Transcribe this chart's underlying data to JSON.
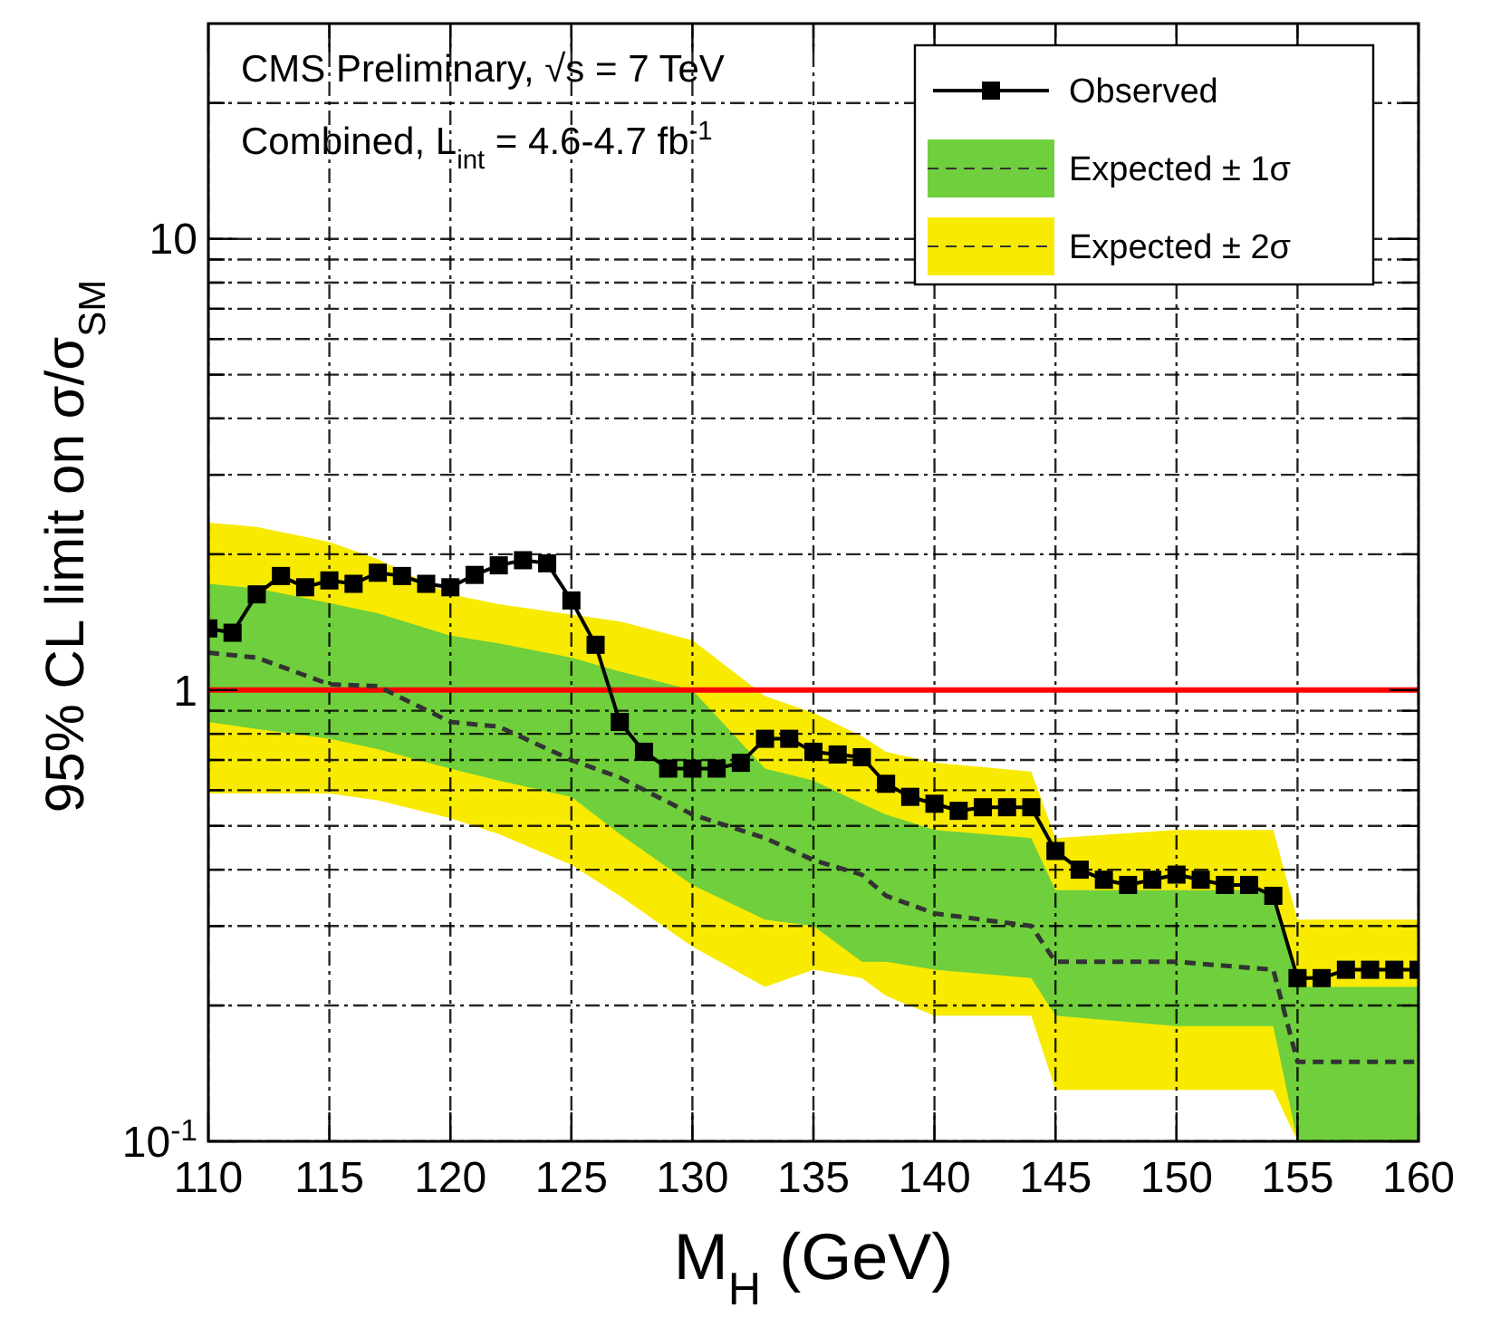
{
  "chart_data": {
    "type": "line",
    "xlabel": "M$_{H}$ (GeV)",
    "ylabel": "95% CL limit on σ/σ$_{SM}$",
    "annotations": [
      "CMS Preliminary, √s = 7 TeV",
      "Combined, L$_{int}$ = 4.6-4.7 fb$^{-1}$"
    ],
    "log": true,
    "xlim": [
      110,
      160
    ],
    "xticks": [
      110,
      115,
      120,
      125,
      130,
      135,
      140,
      145,
      150,
      155,
      160
    ],
    "ylim": [
      0.1,
      30
    ],
    "yticks": [
      {
        "value": 0.1,
        "label": "10$^{-1}$"
      },
      {
        "value": 0.2,
        "label": null
      },
      {
        "value": 0.3,
        "label": null
      },
      {
        "value": 0.4,
        "label": null
      },
      {
        "value": 0.5,
        "label": null
      },
      {
        "value": 0.6,
        "label": null
      },
      {
        "value": 0.7,
        "label": null
      },
      {
        "value": 0.8,
        "label": null
      },
      {
        "value": 0.9,
        "label": null
      },
      1,
      {
        "value": 2,
        "label": null
      },
      {
        "value": 3,
        "label": null
      },
      {
        "value": 4,
        "label": null
      },
      {
        "value": 5,
        "label": null
      },
      {
        "value": 6,
        "label": null
      },
      {
        "value": 7,
        "label": null
      },
      {
        "value": 8,
        "label": null
      },
      {
        "value": 9,
        "label": null
      },
      10,
      {
        "value": 20,
        "label": null
      }
    ],
    "grid": true,
    "legend": "top right",
    "ref_lines": [
      {
        "axis": "y",
        "value": 1,
        "color": "#ff0000"
      }
    ],
    "series": [
      {
        "name": "Observed",
        "color": "#000000",
        "marker": "square",
        "line_style": "solid",
        "x": [
          110,
          111,
          112,
          113,
          114,
          115,
          116,
          117,
          118,
          119,
          120,
          121,
          122,
          123,
          124,
          125,
          126,
          127,
          128,
          129,
          130,
          131,
          132,
          133,
          134,
          135,
          136,
          137,
          138,
          139,
          140,
          141,
          142,
          143,
          144,
          145,
          146,
          147,
          148,
          149,
          150,
          151,
          152,
          153,
          154,
          155,
          156,
          157,
          158,
          159,
          160
        ],
        "values": [
          1.37,
          1.34,
          1.63,
          1.79,
          1.69,
          1.75,
          1.72,
          1.82,
          1.79,
          1.72,
          1.69,
          1.8,
          1.89,
          1.94,
          1.91,
          1.58,
          1.26,
          0.85,
          0.73,
          0.67,
          0.67,
          0.67,
          0.69,
          0.78,
          0.78,
          0.73,
          0.72,
          0.71,
          0.62,
          0.58,
          0.56,
          0.54,
          0.55,
          0.55,
          0.55,
          0.44,
          0.4,
          0.38,
          0.37,
          0.38,
          0.39,
          0.38,
          0.37,
          0.37,
          0.35,
          0.23,
          0.23,
          0.24,
          0.24,
          0.24,
          0.24
        ]
      },
      {
        "name": "Expected ± 1σ",
        "color": "#6fcf3c",
        "x": [
          110,
          112,
          115,
          117,
          120,
          122,
          125,
          127,
          130,
          133,
          135,
          137,
          138,
          140,
          144,
          145,
          150,
          154,
          155,
          160
        ],
        "values": [
          null,
          null,
          null,
          null,
          null,
          null,
          null,
          null,
          null,
          null,
          null,
          null,
          null,
          null,
          null,
          null,
          null,
          null,
          null,
          null
        ],
        "upper": [
          1.72,
          1.68,
          1.56,
          1.48,
          1.32,
          1.27,
          1.18,
          1.1,
          1.0,
          0.67,
          0.63,
          0.56,
          0.53,
          0.49,
          0.47,
          0.36,
          0.36,
          0.36,
          0.22,
          0.22
        ],
        "lower": [
          0.85,
          0.82,
          0.78,
          0.74,
          0.67,
          0.63,
          0.58,
          0.48,
          0.37,
          0.31,
          0.3,
          0.25,
          0.25,
          0.24,
          0.23,
          0.19,
          0.18,
          0.18,
          0.1,
          0.1
        ]
      },
      {
        "name": "Expected ± 2σ",
        "color": "#f8ea00",
        "x": [
          110,
          112,
          115,
          117,
          120,
          122,
          125,
          127,
          130,
          133,
          135,
          137,
          138,
          140,
          144,
          145,
          150,
          154,
          155,
          160
        ],
        "values": [
          null,
          null,
          null,
          null,
          null,
          null,
          null,
          null,
          null,
          null,
          null,
          null,
          null,
          null,
          null,
          null,
          null,
          null,
          null,
          null
        ],
        "upper": [
          2.35,
          2.3,
          2.13,
          1.95,
          1.63,
          1.55,
          1.47,
          1.42,
          1.29,
          0.97,
          0.89,
          0.79,
          0.73,
          0.69,
          0.66,
          0.47,
          0.49,
          0.49,
          0.31,
          0.31
        ],
        "lower": [
          0.59,
          0.59,
          0.59,
          0.57,
          0.52,
          0.48,
          0.41,
          0.35,
          0.27,
          0.22,
          0.24,
          0.23,
          0.21,
          0.19,
          0.19,
          0.13,
          0.13,
          0.13,
          0.1,
          0.1
        ]
      },
      {
        "color": "#333333",
        "marker": "none",
        "line_style": "dashed",
        "x": [
          110,
          112,
          115,
          117,
          120,
          122,
          125,
          127,
          130,
          133,
          135,
          137,
          138,
          140,
          144,
          145,
          150,
          154,
          155,
          160
        ],
        "values": [
          1.21,
          1.18,
          1.03,
          1.02,
          0.85,
          0.83,
          0.7,
          0.64,
          0.53,
          0.47,
          0.42,
          0.39,
          0.35,
          0.32,
          0.3,
          0.25,
          0.25,
          0.24,
          0.15,
          0.15
        ]
      }
    ]
  }
}
